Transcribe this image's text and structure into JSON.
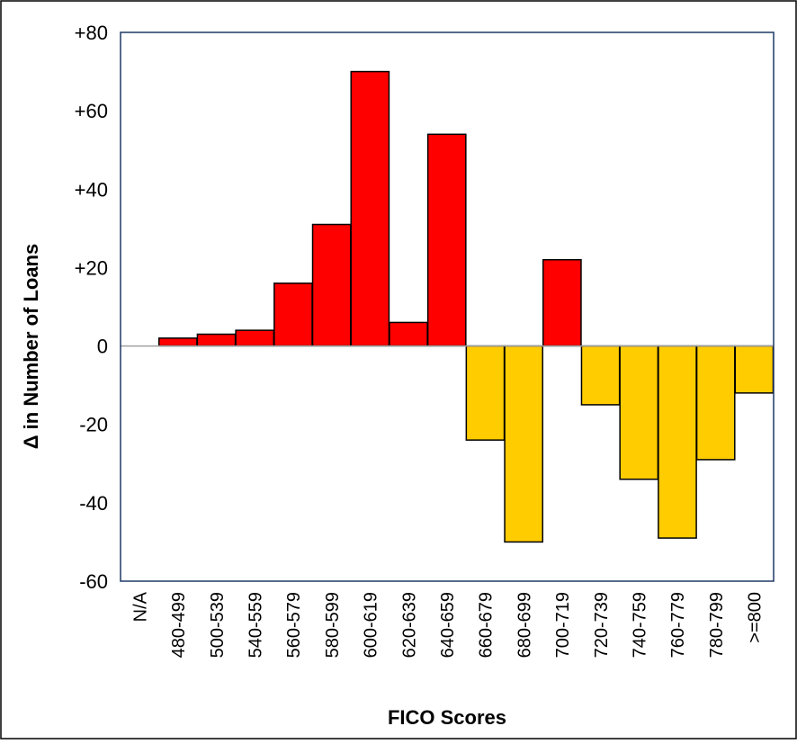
{
  "chart_data": {
    "type": "bar",
    "title": "",
    "xlabel": "FICO Scores",
    "ylabel": "Δ in Number of Loans",
    "categories": [
      "N/A",
      "480-499",
      "500-539",
      "540-559",
      "560-579",
      "580-599",
      "600-619",
      "620-639",
      "640-659",
      "660-679",
      "680-699",
      "700-719",
      "720-739",
      "740-759",
      "760-779",
      "780-799",
      ">=800"
    ],
    "values": [
      0,
      2,
      3,
      4,
      16,
      31,
      70,
      6,
      54,
      -24,
      -50,
      22,
      -15,
      -34,
      -49,
      -29,
      -12
    ],
    "ylim": [
      -60,
      80
    ],
    "yticks": [
      -60,
      -40,
      -20,
      0,
      20,
      40,
      60,
      80
    ],
    "ytick_labels": [
      "-60",
      "-40",
      "-20",
      "0",
      "+20",
      "+40",
      "+60",
      "+80"
    ],
    "grid": false,
    "legend": "none",
    "colors": {
      "positive": "#ff0000",
      "negative": "#ffcc00",
      "bar_edge": "#000000",
      "plot_border": "#1f3864",
      "zero_line": "#a0a0a0",
      "frame": "#000000"
    }
  }
}
